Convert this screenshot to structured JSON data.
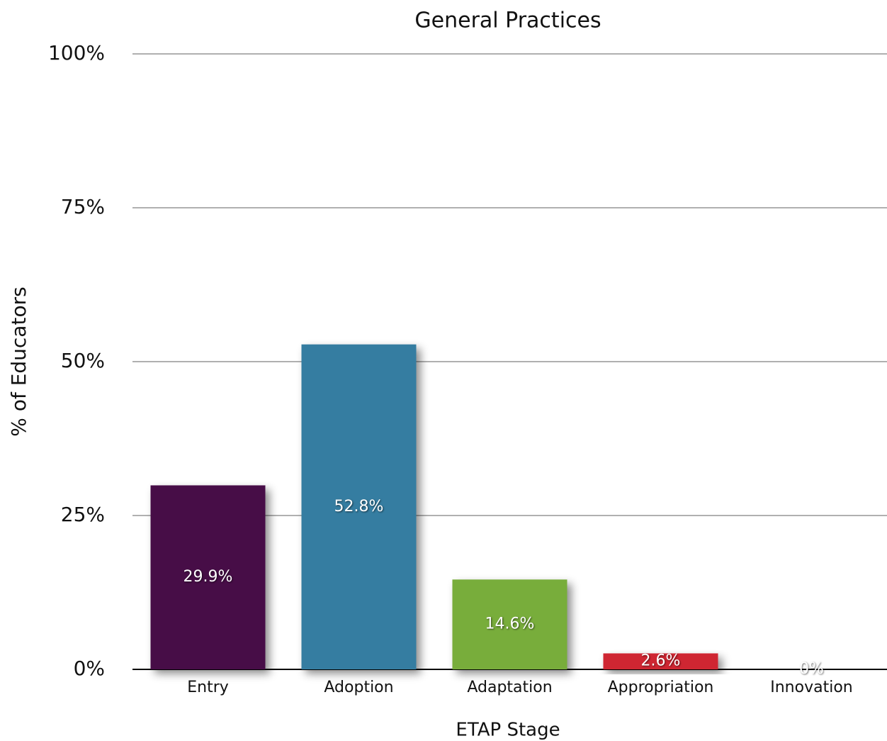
{
  "chart_data": {
    "type": "bar",
    "title": "General Practices",
    "x_label": "ETAP Stage",
    "y_label": "% of Educators",
    "categories": [
      "Entry",
      "Adoption",
      "Adaptation",
      "Appropriation",
      "Innovation"
    ],
    "values": [
      29.9,
      52.8,
      14.6,
      2.6,
      0
    ],
    "value_labels": [
      "29.9%",
      "52.8%",
      "14.6%",
      "2.6%",
      "0%"
    ],
    "colors": [
      "#460d47",
      "#367da1",
      "#78ad3b",
      "#cf2530",
      "#cccccc"
    ],
    "ylim": [
      0,
      100
    ],
    "yticks": [
      {
        "value": 0,
        "label": "0%"
      },
      {
        "value": 25,
        "label": "25%"
      },
      {
        "value": 50,
        "label": "50%"
      },
      {
        "value": 75,
        "label": "75%"
      },
      {
        "value": 100,
        "label": "100%"
      }
    ],
    "grid": true
  }
}
